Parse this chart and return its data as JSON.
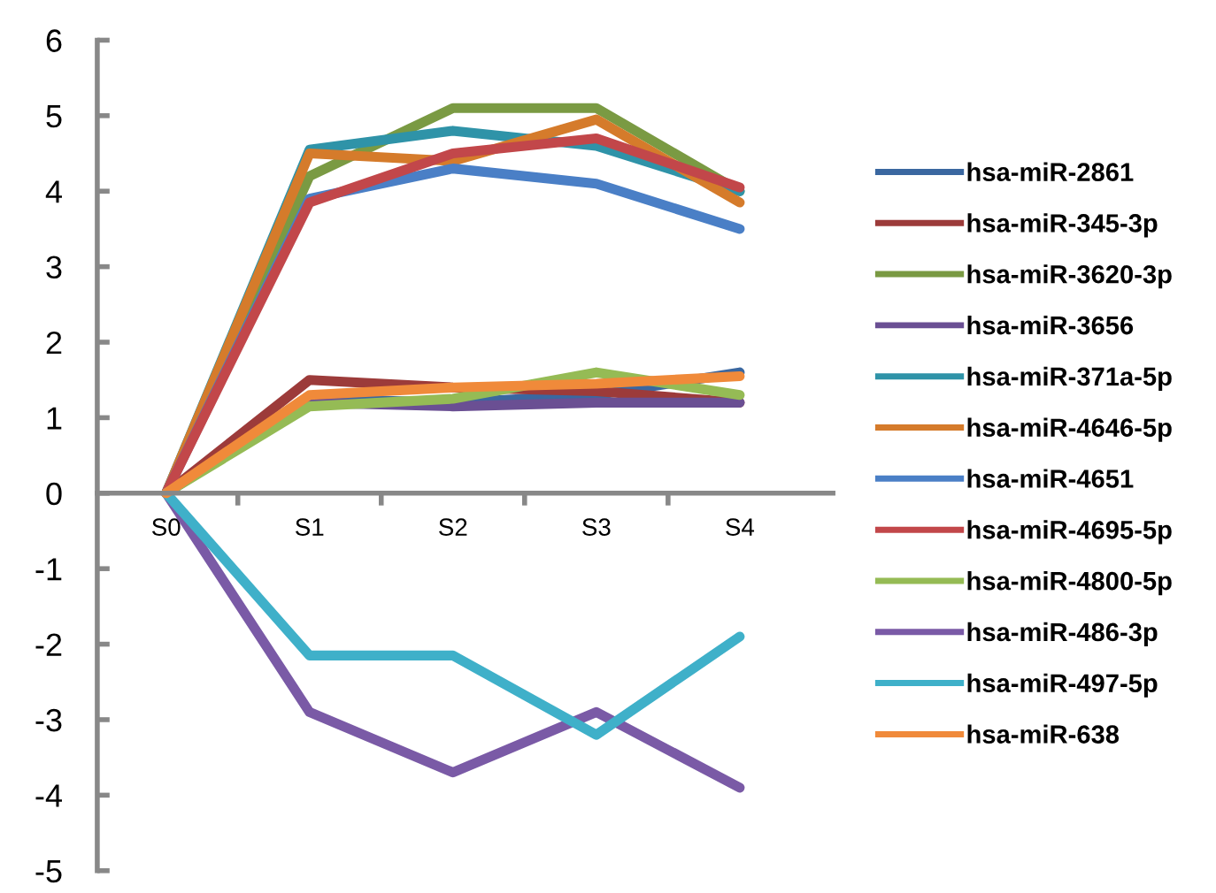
{
  "chart_data": {
    "type": "line",
    "categories": [
      "S0",
      "S1",
      "S2",
      "S3",
      "S4"
    ],
    "series": [
      {
        "name": "hsa-miR-2861",
        "color": "#3a67a0",
        "values": [
          0,
          1.25,
          1.2,
          1.3,
          1.6
        ]
      },
      {
        "name": "hsa-miR-345-3p",
        "color": "#9c3b3a",
        "values": [
          0,
          1.5,
          1.4,
          1.35,
          1.2
        ]
      },
      {
        "name": "hsa-miR-3620-3p",
        "color": "#7a9a43",
        "values": [
          0,
          4.2,
          5.1,
          5.1,
          4.0
        ]
      },
      {
        "name": "hsa-miR-3656",
        "color": "#6a4f93",
        "values": [
          0,
          1.2,
          1.15,
          1.2,
          1.2
        ]
      },
      {
        "name": "hsa-miR-371a-5p",
        "color": "#2f93a8",
        "values": [
          0,
          4.55,
          4.8,
          4.6,
          4.0
        ]
      },
      {
        "name": "hsa-miR-4646-5p",
        "color": "#d57b2b",
        "values": [
          0,
          4.5,
          4.4,
          4.95,
          3.85
        ]
      },
      {
        "name": "hsa-miR-4651",
        "color": "#4a7fc6",
        "values": [
          0,
          3.9,
          4.3,
          4.1,
          3.5
        ]
      },
      {
        "name": "hsa-miR-4695-5p",
        "color": "#c2474a",
        "values": [
          0,
          3.85,
          4.5,
          4.7,
          4.05
        ]
      },
      {
        "name": "hsa-miR-4800-5p",
        "color": "#95bb55",
        "values": [
          0,
          1.15,
          1.25,
          1.6,
          1.3
        ]
      },
      {
        "name": "hsa-miR-486-3p",
        "color": "#7a5aa6",
        "values": [
          0,
          -2.9,
          -3.7,
          -2.9,
          -3.9
        ]
      },
      {
        "name": "hsa-miR-497-5p",
        "color": "#3fb0c9",
        "values": [
          0,
          -2.15,
          -2.15,
          -3.2,
          -1.9
        ]
      },
      {
        "name": "hsa-miR-638",
        "color": "#f08a3a",
        "values": [
          0,
          1.3,
          1.4,
          1.45,
          1.55
        ]
      }
    ],
    "ylim": [
      -5,
      6
    ],
    "yticks": [
      -5,
      -4,
      -3,
      -2,
      -1,
      0,
      1,
      2,
      3,
      4,
      5,
      6
    ],
    "grid": false,
    "legend": "right",
    "marker": "none",
    "line_style": "solid"
  }
}
